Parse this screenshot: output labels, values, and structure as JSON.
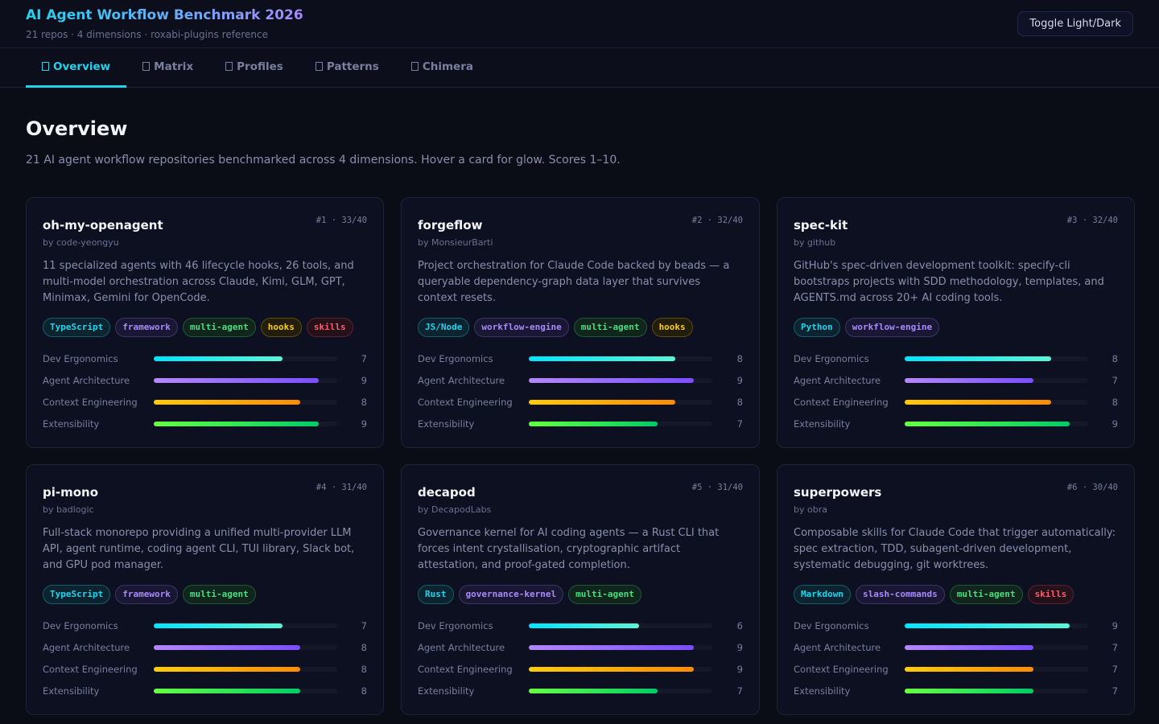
{
  "header": {
    "title": "AI Agent Workflow Benchmark 2026",
    "subtitle": "21 repos · 4 dimensions · roxabi-plugins reference",
    "toggle_label": "Toggle Light/Dark"
  },
  "tabs": [
    {
      "label": "Overview",
      "active": true
    },
    {
      "label": "Matrix"
    },
    {
      "label": "Profiles"
    },
    {
      "label": "Patterns"
    },
    {
      "label": "Chimera"
    }
  ],
  "page": {
    "title": "Overview",
    "description": "21 AI agent workflow repositories benchmarked across 4 dimensions. Hover a card for glow. Scores 1–10."
  },
  "dimensions": [
    "Dev Ergonomics",
    "Agent Architecture",
    "Context Engineering",
    "Extensibility"
  ],
  "bar_gradients": [
    [
      "#00e5ff",
      "#5cf5d6"
    ],
    [
      "#b388ff",
      "#7c4dff"
    ],
    [
      "#ffcc00",
      "#ff8c00"
    ],
    [
      "#66ff44",
      "#00cc66"
    ]
  ],
  "cards": [
    {
      "name": "oh-my-openagent",
      "author": "by code-yeongyu",
      "rank": "#1 · 33/40",
      "description": "11 specialized agents with 46 lifecycle hooks, 26 tools, and multi-model orchestration across Claude, Kimi, GLM, GPT, Minimax, Gemini for OpenCode.",
      "tags": [
        {
          "label": "TypeScript",
          "tone": "cyan"
        },
        {
          "label": "framework",
          "tone": "purple"
        },
        {
          "label": "multi-agent",
          "tone": "green"
        },
        {
          "label": "hooks",
          "tone": "yellow"
        },
        {
          "label": "skills",
          "tone": "red"
        }
      ],
      "scores": [
        7,
        9,
        8,
        9
      ]
    },
    {
      "name": "forgeflow",
      "author": "by MonsieurBarti",
      "rank": "#2 · 32/40",
      "description": "Project orchestration for Claude Code backed by beads — a queryable dependency-graph data layer that survives context resets.",
      "tags": [
        {
          "label": "JS/Node",
          "tone": "cyan"
        },
        {
          "label": "workflow-engine",
          "tone": "purple"
        },
        {
          "label": "multi-agent",
          "tone": "green"
        },
        {
          "label": "hooks",
          "tone": "yellow"
        }
      ],
      "scores": [
        8,
        9,
        8,
        7
      ]
    },
    {
      "name": "spec-kit",
      "author": "by github",
      "rank": "#3 · 32/40",
      "description": "GitHub's spec-driven development toolkit: specify-cli bootstraps projects with SDD methodology, templates, and AGENTS.md across 20+ AI coding tools.",
      "tags": [
        {
          "label": "Python",
          "tone": "cyan"
        },
        {
          "label": "workflow-engine",
          "tone": "purple"
        }
      ],
      "scores": [
        8,
        7,
        8,
        9
      ]
    },
    {
      "name": "pi-mono",
      "author": "by badlogic",
      "rank": "#4 · 31/40",
      "description": "Full-stack monorepo providing a unified multi-provider LLM API, agent runtime, coding agent CLI, TUI library, Slack bot, and GPU pod manager.",
      "tags": [
        {
          "label": "TypeScript",
          "tone": "cyan"
        },
        {
          "label": "framework",
          "tone": "purple"
        },
        {
          "label": "multi-agent",
          "tone": "green"
        }
      ],
      "scores": [
        7,
        8,
        8,
        8
      ]
    },
    {
      "name": "decapod",
      "author": "by DecapodLabs",
      "rank": "#5 · 31/40",
      "description": "Governance kernel for AI coding agents — a Rust CLI that forces intent crystallisation, cryptographic artifact attestation, and proof-gated completion.",
      "tags": [
        {
          "label": "Rust",
          "tone": "cyan"
        },
        {
          "label": "governance-kernel",
          "tone": "purple"
        },
        {
          "label": "multi-agent",
          "tone": "green"
        }
      ],
      "scores": [
        6,
        9,
        9,
        7
      ]
    },
    {
      "name": "superpowers",
      "author": "by obra",
      "rank": "#6 · 30/40",
      "description": "Composable skills for Claude Code that trigger automatically: spec extraction, TDD, subagent-driven development, systematic debugging, git worktrees.",
      "tags": [
        {
          "label": "Markdown",
          "tone": "cyan"
        },
        {
          "label": "slash-commands",
          "tone": "purple"
        },
        {
          "label": "multi-agent",
          "tone": "green"
        },
        {
          "label": "skills",
          "tone": "red"
        }
      ],
      "scores": [
        9,
        7,
        7,
        7
      ]
    }
  ]
}
